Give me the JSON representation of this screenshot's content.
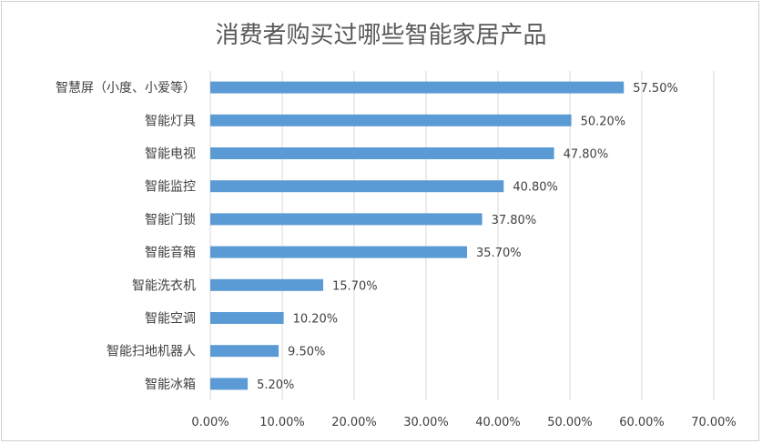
{
  "chart_data": {
    "type": "bar",
    "orientation": "horizontal",
    "title": "消费者购买过哪些智能家居产品",
    "categories": [
      "智慧屏（小度、小爱等）",
      "智能灯具",
      "智能电视",
      "智能监控",
      "智能门锁",
      "智能音箱",
      "智能洗衣机",
      "智能空调",
      "智能扫地机器人",
      "智能冰箱"
    ],
    "values": [
      57.5,
      50.2,
      47.8,
      40.8,
      37.8,
      35.7,
      15.7,
      10.2,
      9.5,
      5.2
    ],
    "data_labels": [
      "57.50%",
      "50.20%",
      "47.80%",
      "40.80%",
      "37.80%",
      "35.70%",
      "15.70%",
      "10.20%",
      "9.50%",
      "5.20%"
    ],
    "xlim": [
      0,
      70
    ],
    "x_ticks": [
      "0.00%",
      "10.00%",
      "20.00%",
      "30.00%",
      "40.00%",
      "50.00%",
      "60.00%",
      "70.00%"
    ],
    "grid": true,
    "bar_color": "#5b9bd5",
    "grid_color": "#d9d9d9"
  }
}
